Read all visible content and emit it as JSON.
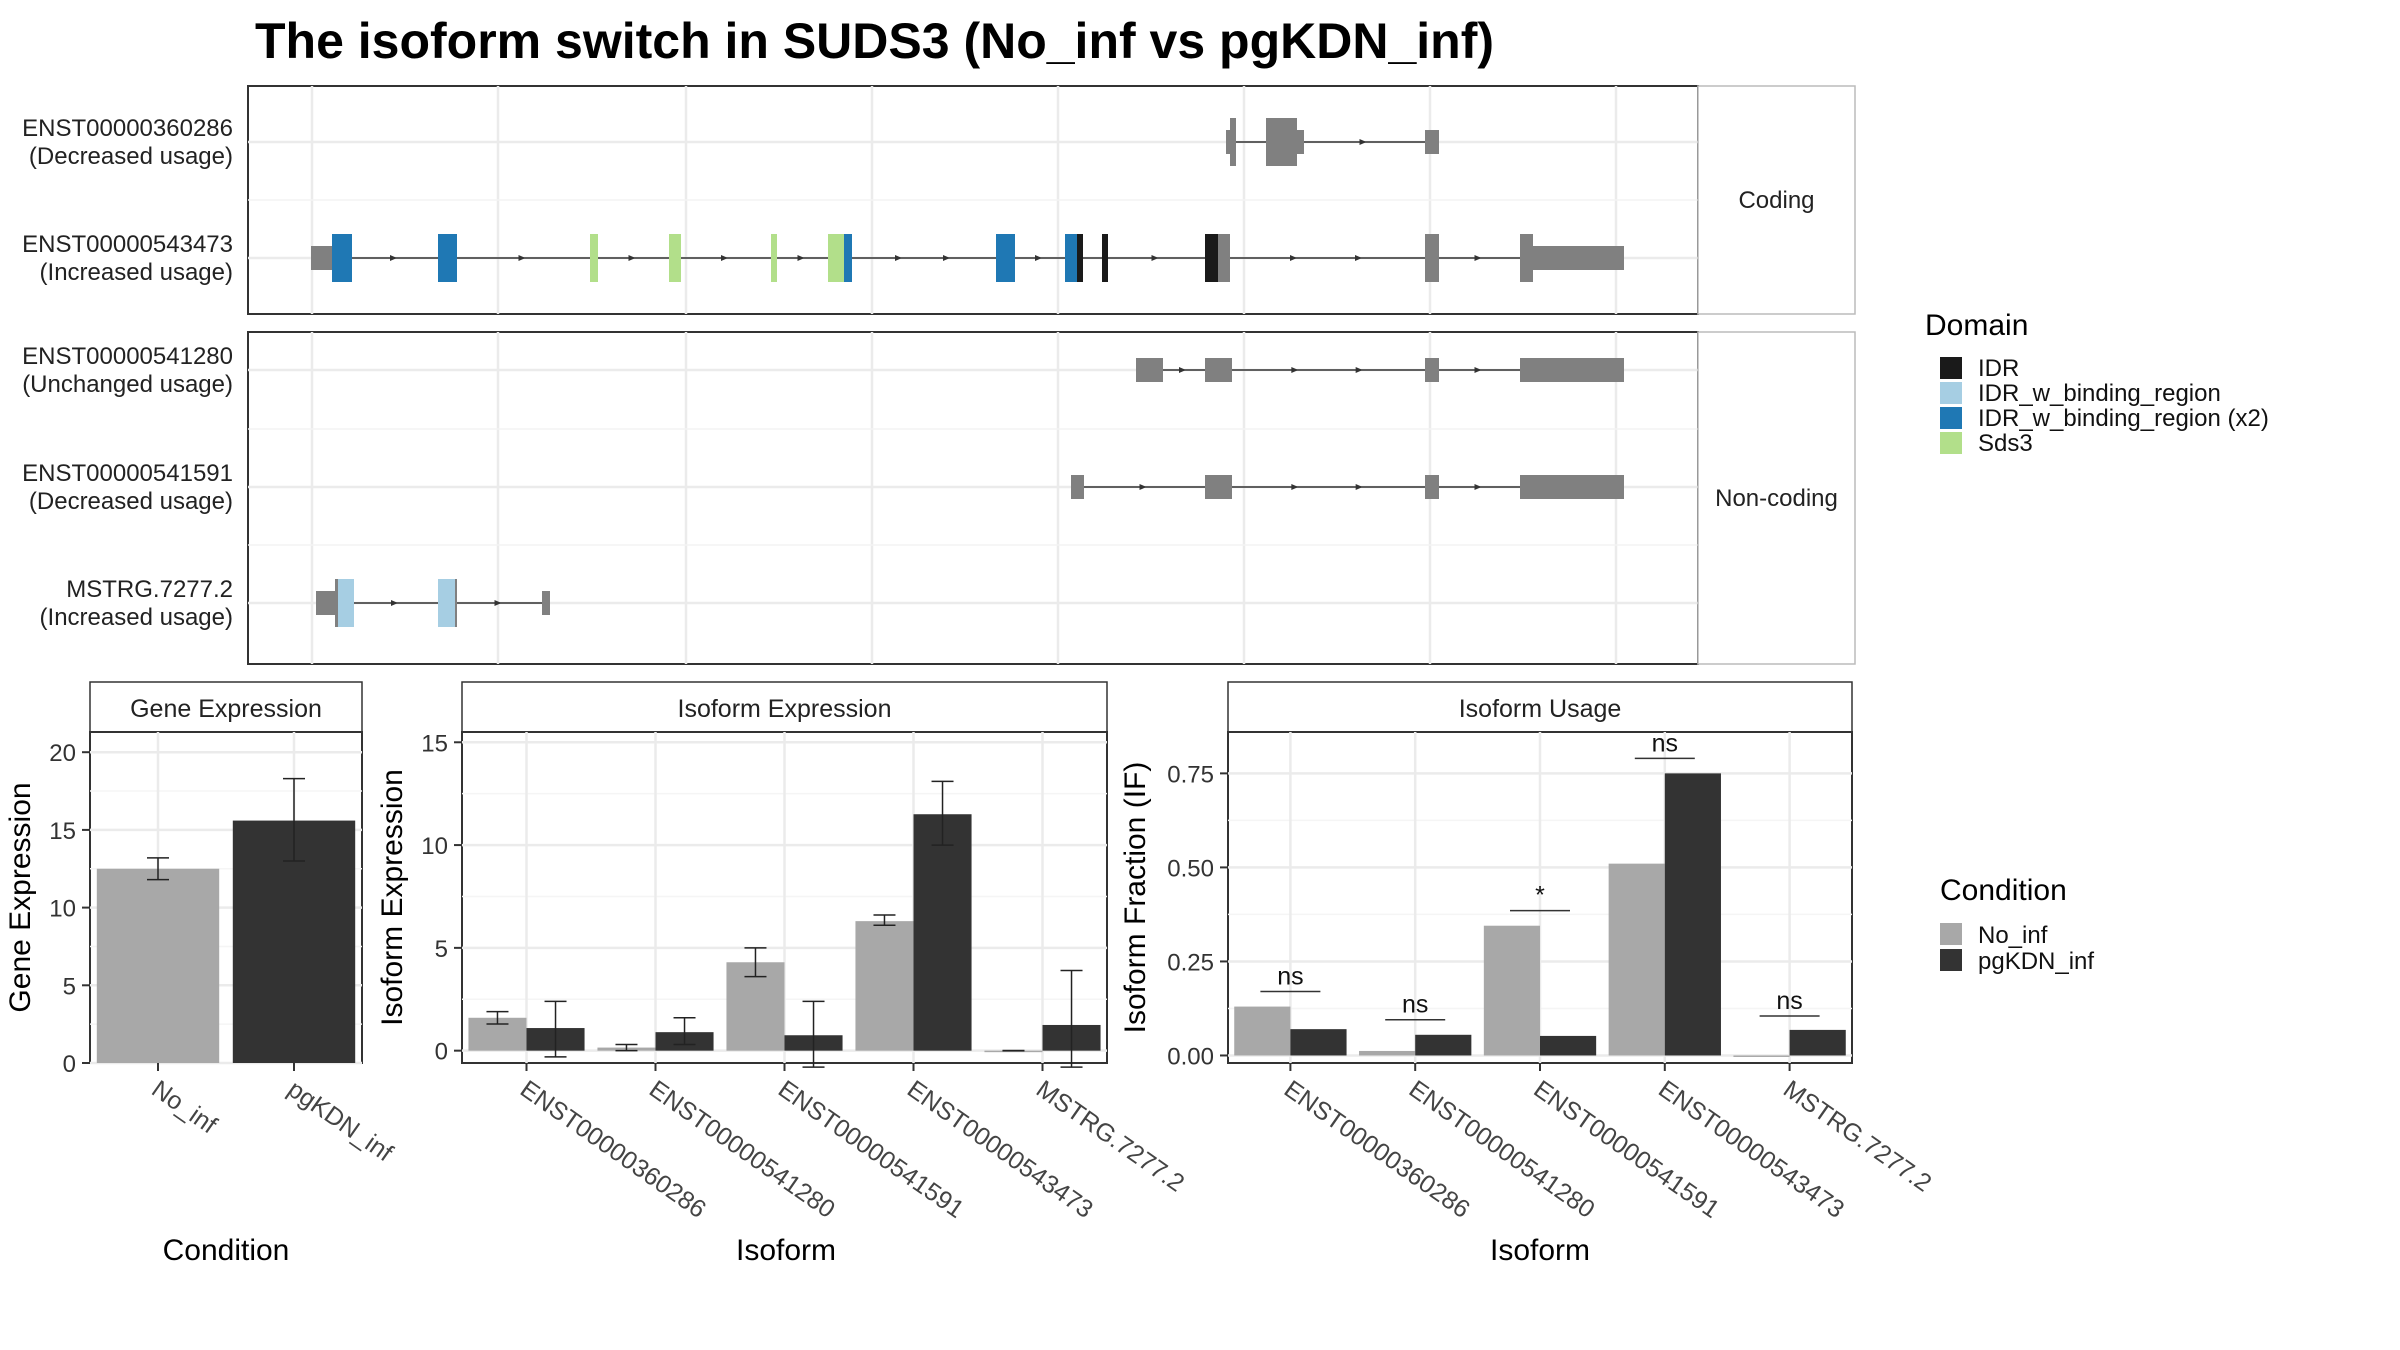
{
  "figure": {
    "title": "The isoform switch in SUDS3 (No_inf vs pgKDN_inf)"
  },
  "chart_data": [
    {
      "type": "gene_structure",
      "title": "",
      "facets": [
        {
          "strip": "Coding",
          "rows": [
            {
              "id": "ENST00000360286",
              "usage": "(Decreased usage)",
              "intron_span": [
                1229,
                1431
              ],
              "exons": [
                {
                  "start": 1226,
                  "end": 1230,
                  "kind": "utr"
                },
                {
                  "start": 1230,
                  "end": 1236,
                  "kind": "cds"
                },
                {
                  "start": 1266,
                  "end": 1297,
                  "kind": "cds"
                },
                {
                  "start": 1297,
                  "end": 1304,
                  "kind": "utr"
                },
                {
                  "start": 1425,
                  "end": 1439,
                  "kind": "utr"
                }
              ],
              "domains": []
            },
            {
              "id": "ENST00000543473",
              "usage": "(Increased usage)",
              "intron_span": [
                1520,
                1520
              ],
              "intron_span_full": [
                311,
                1624
              ],
              "exons": [
                {
                  "start": 311,
                  "end": 332,
                  "kind": "utr"
                },
                {
                  "start": 332,
                  "end": 352,
                  "kind": "cds"
                },
                {
                  "start": 438,
                  "end": 457,
                  "kind": "cds"
                },
                {
                  "start": 590,
                  "end": 598,
                  "kind": "cds"
                },
                {
                  "start": 669,
                  "end": 681,
                  "kind": "cds"
                },
                {
                  "start": 771,
                  "end": 777,
                  "kind": "cds"
                },
                {
                  "start": 828,
                  "end": 852,
                  "kind": "cds"
                },
                {
                  "start": 996,
                  "end": 1015,
                  "kind": "cds"
                },
                {
                  "start": 1065,
                  "end": 1083,
                  "kind": "cds"
                },
                {
                  "start": 1102,
                  "end": 1108,
                  "kind": "cds"
                },
                {
                  "start": 1205,
                  "end": 1230,
                  "kind": "cds"
                },
                {
                  "start": 1425,
                  "end": 1439,
                  "kind": "cds"
                },
                {
                  "start": 1520,
                  "end": 1533,
                  "kind": "cds"
                },
                {
                  "start": 1533,
                  "end": 1624,
                  "kind": "utr"
                }
              ],
              "domains": [
                {
                  "start": 332,
                  "end": 352,
                  "name": "IDR_w_binding_region (x2)"
                },
                {
                  "start": 438,
                  "end": 457,
                  "name": "IDR_w_binding_region (x2)"
                },
                {
                  "start": 590,
                  "end": 598,
                  "name": "Sds3"
                },
                {
                  "start": 669,
                  "end": 681,
                  "name": "Sds3"
                },
                {
                  "start": 771,
                  "end": 777,
                  "name": "Sds3"
                },
                {
                  "start": 828,
                  "end": 844,
                  "name": "Sds3"
                },
                {
                  "start": 844,
                  "end": 852,
                  "name": "IDR_w_binding_region (x2)"
                },
                {
                  "start": 996,
                  "end": 1015,
                  "name": "IDR_w_binding_region (x2)"
                },
                {
                  "start": 1065,
                  "end": 1077,
                  "name": "IDR_w_binding_region (x2)"
                },
                {
                  "start": 1077,
                  "end": 1083,
                  "name": "IDR"
                },
                {
                  "start": 1102,
                  "end": 1108,
                  "name": "IDR"
                },
                {
                  "start": 1205,
                  "end": 1218,
                  "name": "IDR"
                }
              ]
            }
          ]
        },
        {
          "strip": "Non-coding",
          "rows": [
            {
              "id": "ENST00000541280",
              "usage": "(Unchanged usage)",
              "intron_span_full": [
                1136,
                1624
              ],
              "exons": [
                {
                  "start": 1136,
                  "end": 1163,
                  "kind": "utr"
                },
                {
                  "start": 1205,
                  "end": 1232,
                  "kind": "utr"
                },
                {
                  "start": 1425,
                  "end": 1439,
                  "kind": "utr"
                },
                {
                  "start": 1520,
                  "end": 1624,
                  "kind": "utr"
                }
              ],
              "domains": []
            },
            {
              "id": "ENST00000541591",
              "usage": "(Decreased usage)",
              "intron_span_full": [
                1071,
                1624
              ],
              "exons": [
                {
                  "start": 1071,
                  "end": 1084,
                  "kind": "utr"
                },
                {
                  "start": 1205,
                  "end": 1232,
                  "kind": "utr"
                },
                {
                  "start": 1425,
                  "end": 1439,
                  "kind": "utr"
                },
                {
                  "start": 1520,
                  "end": 1624,
                  "kind": "utr"
                }
              ],
              "domains": []
            },
            {
              "id": "MSTRG.7277.2",
              "usage": "(Increased usage)",
              "intron_span_full": [
                316,
                550
              ],
              "exons": [
                {
                  "start": 316,
                  "end": 335,
                  "kind": "utr"
                },
                {
                  "start": 335,
                  "end": 354,
                  "kind": "cds"
                },
                {
                  "start": 438,
                  "end": 457,
                  "kind": "cds"
                },
                {
                  "start": 542,
                  "end": 550,
                  "kind": "utr"
                }
              ],
              "domains": [
                {
                  "start": 338,
                  "end": 354,
                  "name": "IDR_w_binding_region"
                },
                {
                  "start": 438,
                  "end": 455,
                  "name": "IDR_w_binding_region"
                }
              ]
            }
          ]
        }
      ],
      "legend": {
        "title": "Domain",
        "entries": [
          {
            "name": "IDR",
            "color": "#1a1a1a"
          },
          {
            "name": "IDR_w_binding_region",
            "color": "#a6cee3"
          },
          {
            "name": "IDR_w_binding_region (x2)",
            "color": "#1f78b4"
          },
          {
            "name": "Sds3",
            "color": "#b2df8a"
          }
        ]
      },
      "colors": {
        "exon": "#808080",
        "intron": "#333333"
      }
    },
    {
      "type": "bar",
      "title": "Gene Expression",
      "xlabel": "Condition",
      "ylabel": "Gene Expression",
      "ylim": [
        0,
        21.3
      ],
      "yticks": [
        "0",
        "5",
        "10",
        "15",
        "20"
      ],
      "categories": [
        "No_inf",
        "pgKDN_inf"
      ],
      "series": [
        {
          "values": [
            12.5,
            15.6
          ],
          "err_low": [
            11.8,
            13.0
          ],
          "err_high": [
            13.2,
            18.3
          ]
        }
      ],
      "bar_colors": [
        "#a8a8a8",
        "#333333"
      ]
    },
    {
      "type": "bar",
      "title": "Isoform Expression",
      "xlabel": "Isoform",
      "ylabel": "Isoform Expression",
      "ylim": [
        -0.6,
        15.5
      ],
      "yticks": [
        "0",
        "5",
        "10",
        "15"
      ],
      "categories": [
        "ENST00000360286",
        "ENST00000541280",
        "ENST00000541591",
        "ENST00000543473",
        "MSTRG.7277.2"
      ],
      "series": [
        {
          "name": "No_inf",
          "values": [
            1.6,
            0.15,
            4.3,
            6.3,
            0.0
          ],
          "err_low": [
            1.3,
            0.0,
            3.6,
            6.1,
            0.0
          ],
          "err_high": [
            1.9,
            0.3,
            5.0,
            6.6,
            0.0
          ]
        },
        {
          "name": "pgKDN_inf",
          "values": [
            1.1,
            0.9,
            0.75,
            11.5,
            1.25
          ],
          "err_low": [
            -0.3,
            0.3,
            -0.8,
            10.0,
            -0.8
          ],
          "err_high": [
            2.4,
            1.6,
            2.4,
            13.1,
            3.9
          ]
        }
      ],
      "bar_colors": [
        "#a8a8a8",
        "#333333"
      ]
    },
    {
      "type": "bar",
      "title": "Isoform Usage",
      "xlabel": "Isoform",
      "ylabel": "Isoform Fraction (IF)",
      "ylim": [
        -0.02,
        0.86
      ],
      "yticks": [
        "0.00",
        "0.25",
        "0.50",
        "0.75"
      ],
      "categories": [
        "ENST00000360286",
        "ENST00000541280",
        "ENST00000541591",
        "ENST00000543473",
        "MSTRG.7277.2"
      ],
      "series": [
        {
          "name": "No_inf",
          "values": [
            0.13,
            0.012,
            0.345,
            0.51,
            0.0
          ]
        },
        {
          "name": "pgKDN_inf",
          "values": [
            0.07,
            0.055,
            0.052,
            0.75,
            0.068
          ]
        }
      ],
      "significance": [
        {
          "label": "ns",
          "y": 0.17
        },
        {
          "label": "ns",
          "y": 0.095
        },
        {
          "label": "*",
          "y": 0.385
        },
        {
          "label": "ns",
          "y": 0.79
        },
        {
          "label": "ns",
          "y": 0.105
        }
      ],
      "bar_colors": [
        "#a8a8a8",
        "#333333"
      ]
    }
  ],
  "condition_legend": {
    "title": "Condition",
    "entries": [
      {
        "name": "No_inf",
        "color": "#a8a8a8"
      },
      {
        "name": "pgKDN_inf",
        "color": "#333333"
      }
    ]
  }
}
